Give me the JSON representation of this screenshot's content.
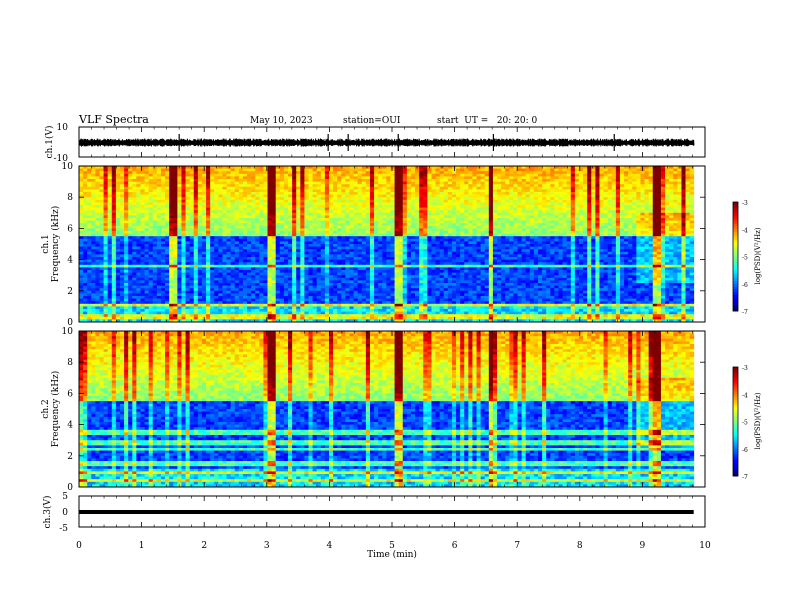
{
  "header": {
    "title": "VLF Spectra",
    "date": "May 10, 2023",
    "station": "station=OUI",
    "start": "start  UT =   20: 20: 0"
  },
  "chart_data": [
    {
      "type": "line",
      "ylabel": "ch.1(V)",
      "ylim": [
        -10,
        10
      ],
      "yticks": [
        "10",
        "-10"
      ],
      "xlim": [
        0,
        10
      ],
      "series_level": 0,
      "note_color": "#000000"
    },
    {
      "type": "heatmap",
      "ylabel": "ch.1\nFrequency (kHz)",
      "ylabel_line1": "ch.1",
      "ylabel_line2": "Frequency (kHz)",
      "ylim": [
        0,
        10
      ],
      "yticks": [
        "0",
        "2",
        "4",
        "6",
        "8",
        "10"
      ],
      "xlim": [
        0,
        10
      ],
      "colorbar": {
        "label": "log(PSD)(V²/Hz)",
        "range": [
          -7,
          -3
        ],
        "ticks": [
          "-3",
          "-4",
          "-5",
          "-6",
          "-7"
        ]
      },
      "data_extent_min": 9.82,
      "bright_bursts_min": [
        1.45,
        3.03,
        5.05,
        6.55,
        9.2
      ],
      "background_floor_khz": 5.5
    },
    {
      "type": "heatmap",
      "ylabel_line1": "ch.2",
      "ylabel_line2": "Frequency (kHz)",
      "ylim": [
        0,
        10
      ],
      "yticks": [
        "0",
        "2",
        "4",
        "6",
        "8",
        "10"
      ],
      "xlim": [
        0,
        10
      ],
      "colorbar": {
        "label": "log(PSD)(V²/Hz)",
        "range": [
          -7,
          -3
        ],
        "ticks": [
          "-3",
          "-4",
          "-5",
          "-6",
          "-7"
        ]
      },
      "data_extent_min": 9.82,
      "bright_bursts_min": [
        3.03,
        5.05,
        6.55,
        9.2
      ],
      "background_floor_khz": 5.5
    },
    {
      "type": "line",
      "ylabel": "ch.3(V)",
      "ylim": [
        -5,
        5
      ],
      "yticks": [
        "5",
        "0",
        "-5"
      ],
      "xlim": [
        0,
        10
      ],
      "series_level": -1,
      "xlabel": "Time (min)",
      "xticks": [
        "0",
        "1",
        "2",
        "3",
        "4",
        "5",
        "6",
        "7",
        "8",
        "9",
        "10"
      ]
    }
  ],
  "colors": {
    "jet": [
      "#00007f",
      "#0000ff",
      "#007fff",
      "#00ffff",
      "#7fff7f",
      "#ffff00",
      "#ff7f00",
      "#ff0000",
      "#7f0000"
    ]
  }
}
